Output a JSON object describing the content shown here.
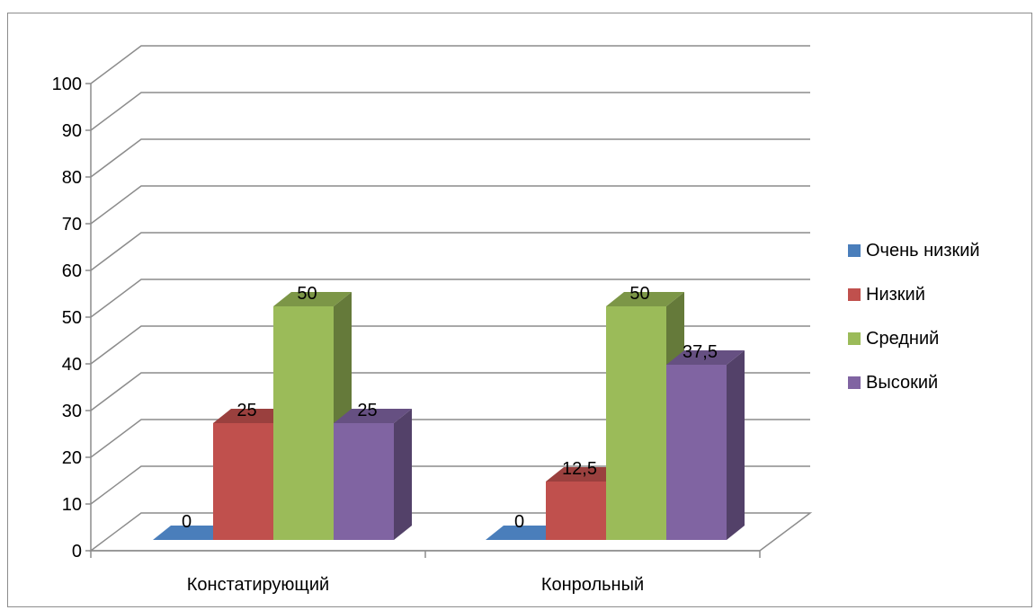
{
  "chart_data": {
    "type": "bar",
    "variant": "3d-clustered-column",
    "title": "",
    "xlabel": "",
    "ylabel": "",
    "categories": [
      "Констатирующий",
      "Конрольный"
    ],
    "series": [
      {
        "name": "Очень низкий",
        "color": "#4a7ebb",
        "values": [
          0,
          0
        ],
        "labels": [
          "0",
          "0"
        ]
      },
      {
        "name": "Низкий",
        "color": "#c0504d",
        "values": [
          25,
          12.5
        ],
        "labels": [
          "25",
          "12,5"
        ]
      },
      {
        "name": "Средний",
        "color": "#9bbb59",
        "values": [
          50,
          50
        ],
        "labels": [
          "50",
          "50"
        ]
      },
      {
        "name": "Высокий",
        "color": "#8064a2",
        "values": [
          25,
          37.5
        ],
        "labels": [
          "25",
          "37,5"
        ]
      }
    ],
    "ylim": [
      0,
      100
    ],
    "yticks": [
      "0",
      "10",
      "20",
      "30",
      "40",
      "50",
      "60",
      "70",
      "80",
      "90",
      "100"
    ],
    "grid": true,
    "legend_position": "right"
  }
}
